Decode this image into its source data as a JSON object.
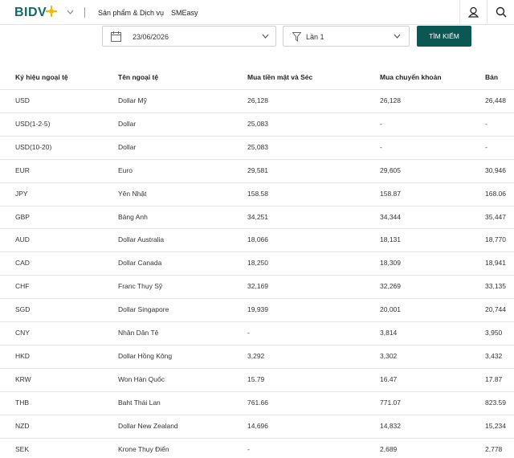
{
  "header": {
    "logo": "BIDV",
    "nav": [
      "Sản phẩm & Dịch vụ",
      "SMEasy"
    ]
  },
  "filter": {
    "date": "23/06/2026",
    "round": "Lần 1",
    "button": "TÌM KIẾM"
  },
  "table": {
    "headers": [
      "Ký hiệu ngoại tệ",
      "Tên ngoại tệ",
      "Mua tiền mặt và Séc",
      "Mua chuyển khoản",
      "Bán"
    ],
    "rows": [
      [
        "USD",
        "Dollar Mỹ",
        "26,128",
        "26,128",
        "26,448"
      ],
      [
        "USD(1-2-5)",
        "Dollar",
        "25,083",
        "-",
        "-"
      ],
      [
        "USD(10-20)",
        "Dollar",
        "25,083",
        "-",
        "-"
      ],
      [
        "EUR",
        "Euro",
        "29,581",
        "29,605",
        "30,946"
      ],
      [
        "JPY",
        "Yên Nhật",
        "158.58",
        "158.87",
        "168.06"
      ],
      [
        "GBP",
        "Bảng Anh",
        "34,251",
        "34,344",
        "35,447"
      ],
      [
        "AUD",
        "Dollar Australia",
        "18,066",
        "18,131",
        "18,770"
      ],
      [
        "CAD",
        "Dollar Canada",
        "18,250",
        "18,309",
        "18,941"
      ],
      [
        "CHF",
        "Franc Thụy Sỹ",
        "32,169",
        "32,269",
        "33,135"
      ],
      [
        "SGD",
        "Dollar Singapore",
        "19,939",
        "20,001",
        "20,744"
      ],
      [
        "CNY",
        "Nhân Dân Tệ",
        "-",
        "3,814",
        "3,950"
      ],
      [
        "HKD",
        "Dollar Hồng Kông",
        "3,292",
        "3,302",
        "3,432"
      ],
      [
        "KRW",
        "Won Hàn Quốc",
        "15.79",
        "16.47",
        "17.87"
      ],
      [
        "THB",
        "Baht Thái Lan",
        "761.66",
        "771.07",
        "823.59"
      ],
      [
        "NZD",
        "Dollar New Zealand",
        "14,696",
        "14,832",
        "15,234"
      ],
      [
        "SEK",
        "Krone Thụy Điển",
        "-",
        "2,689",
        "2,778"
      ]
    ]
  }
}
